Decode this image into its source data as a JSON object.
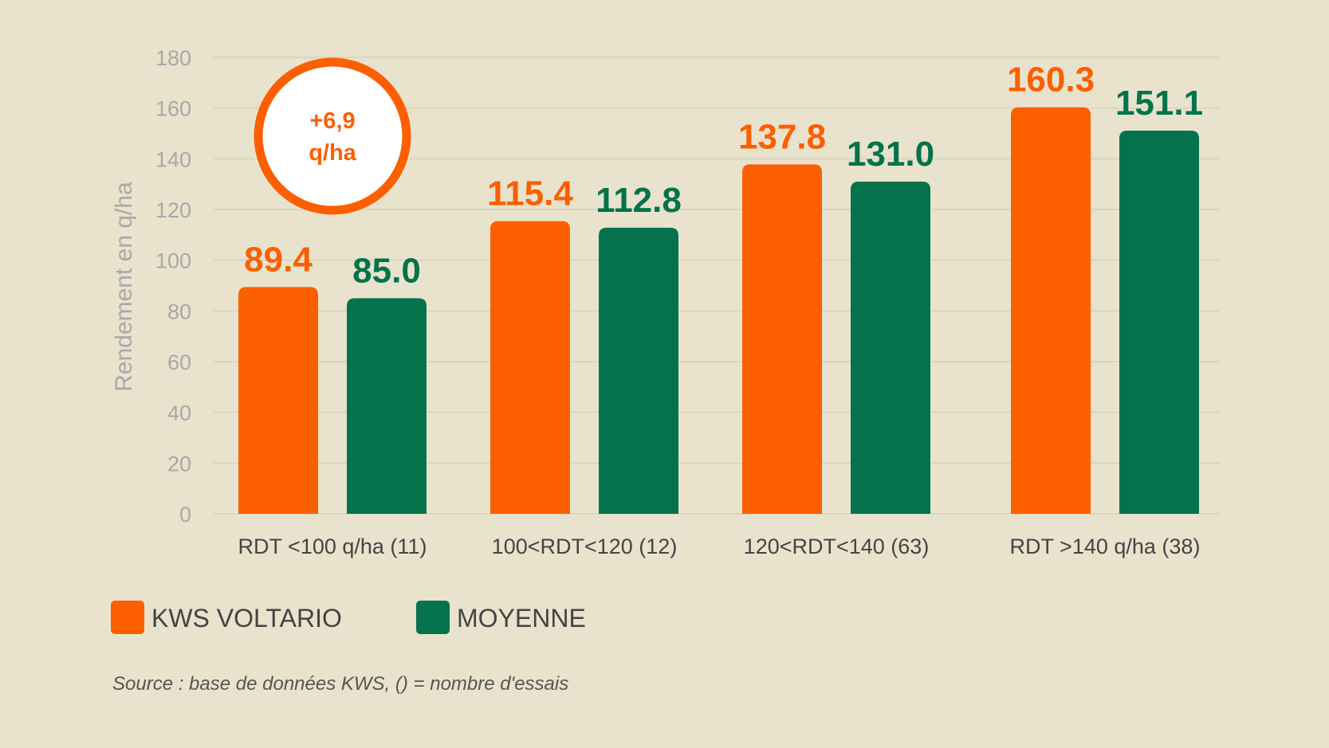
{
  "chart_data": {
    "type": "bar",
    "categories": [
      "RDT <100 q/ha (11)",
      "100<RDT<120 (12)",
      "120<RDT<140 (63)",
      "RDT >140 q/ha (38)"
    ],
    "series": [
      {
        "name": "KWS VOLTARIO",
        "values": [
          89.4,
          115.4,
          137.8,
          160.3
        ],
        "labels": [
          "89.4",
          "115.4",
          "137.8",
          "160.3"
        ],
        "color": "#fc5f00"
      },
      {
        "name": "MOYENNE",
        "values": [
          85.0,
          112.8,
          131.0,
          151.1
        ],
        "labels": [
          "85.0",
          "112.8",
          "131.0",
          "151.1"
        ],
        "color": "#04734b"
      }
    ],
    "ylabel": "Rendement en q/ha",
    "xlabel": "",
    "ylim": [
      0,
      180
    ],
    "yticks": [
      0,
      20,
      40,
      60,
      80,
      100,
      120,
      140,
      160,
      180
    ],
    "grid": true,
    "legend_position": "bottom-left",
    "annotation": {
      "line1": "+6,9",
      "line2": "q/ha",
      "color": "#fc5f00"
    },
    "source": "Source : base de données KWS, () = nombre d'essais"
  },
  "colors": {
    "background": "#e9e3cd",
    "kws": "#fc5f00",
    "moyenne": "#04734b",
    "grid": "#d8d2bd",
    "axis_text": "#a8a8a8"
  }
}
